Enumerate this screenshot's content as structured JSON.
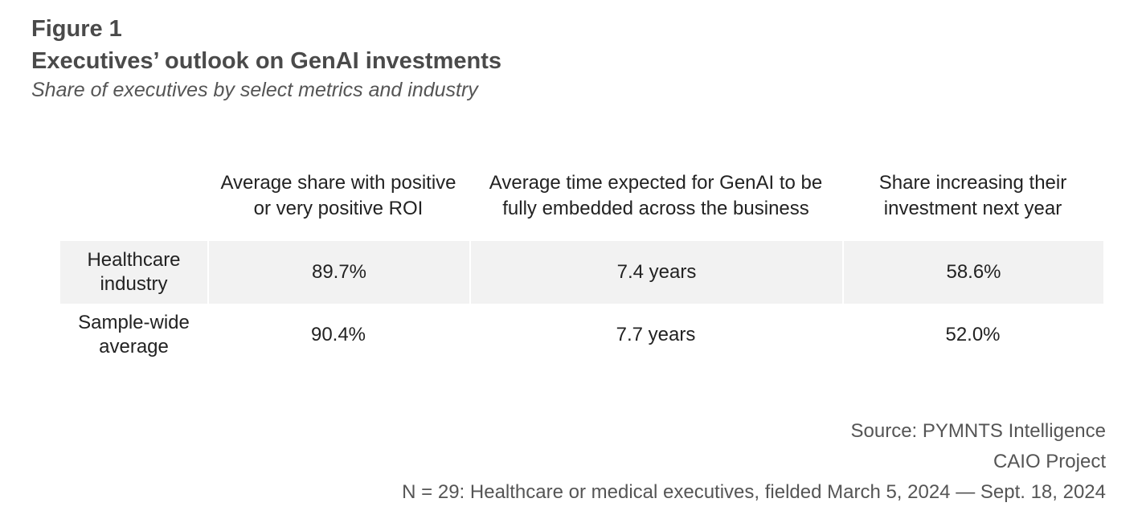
{
  "header": {
    "figure_label": "Figure 1",
    "title": "Executives’ outlook on GenAI investments",
    "subtitle": "Share of executives by select metrics and industry"
  },
  "chart_data": {
    "type": "table",
    "title": "Executives’ outlook on GenAI investments",
    "subtitle": "Share of executives by select metrics and industry",
    "columns": [
      "",
      "Average share with positive or very positive ROI",
      "Average time expected for GenAI to be fully embedded across the business",
      "Share increasing their investment next year"
    ],
    "rows": [
      {
        "label": "Healthcare industry",
        "values": [
          "89.7%",
          "7.4 years",
          "58.6%"
        ],
        "shaded": true
      },
      {
        "label": "Sample-wide average",
        "values": [
          "90.4%",
          "7.7 years",
          "52.0%"
        ],
        "shaded": false
      }
    ],
    "numeric": {
      "positive_roi_pct": [
        89.7,
        90.4
      ],
      "years_to_embed": [
        7.4,
        7.7
      ],
      "increasing_investment_pct": [
        58.6,
        52.0
      ]
    }
  },
  "footer": {
    "source_line1": "Source: PYMNTS Intelligence",
    "source_line2": "CAIO Project",
    "note": "N = 29: Healthcare or medical executives, fielded March 5, 2024 — Sept. 18, 2024"
  },
  "colors": {
    "title_text": "#4a4a4a",
    "body_text": "#222222",
    "shaded_row": "#f2f2f2"
  }
}
